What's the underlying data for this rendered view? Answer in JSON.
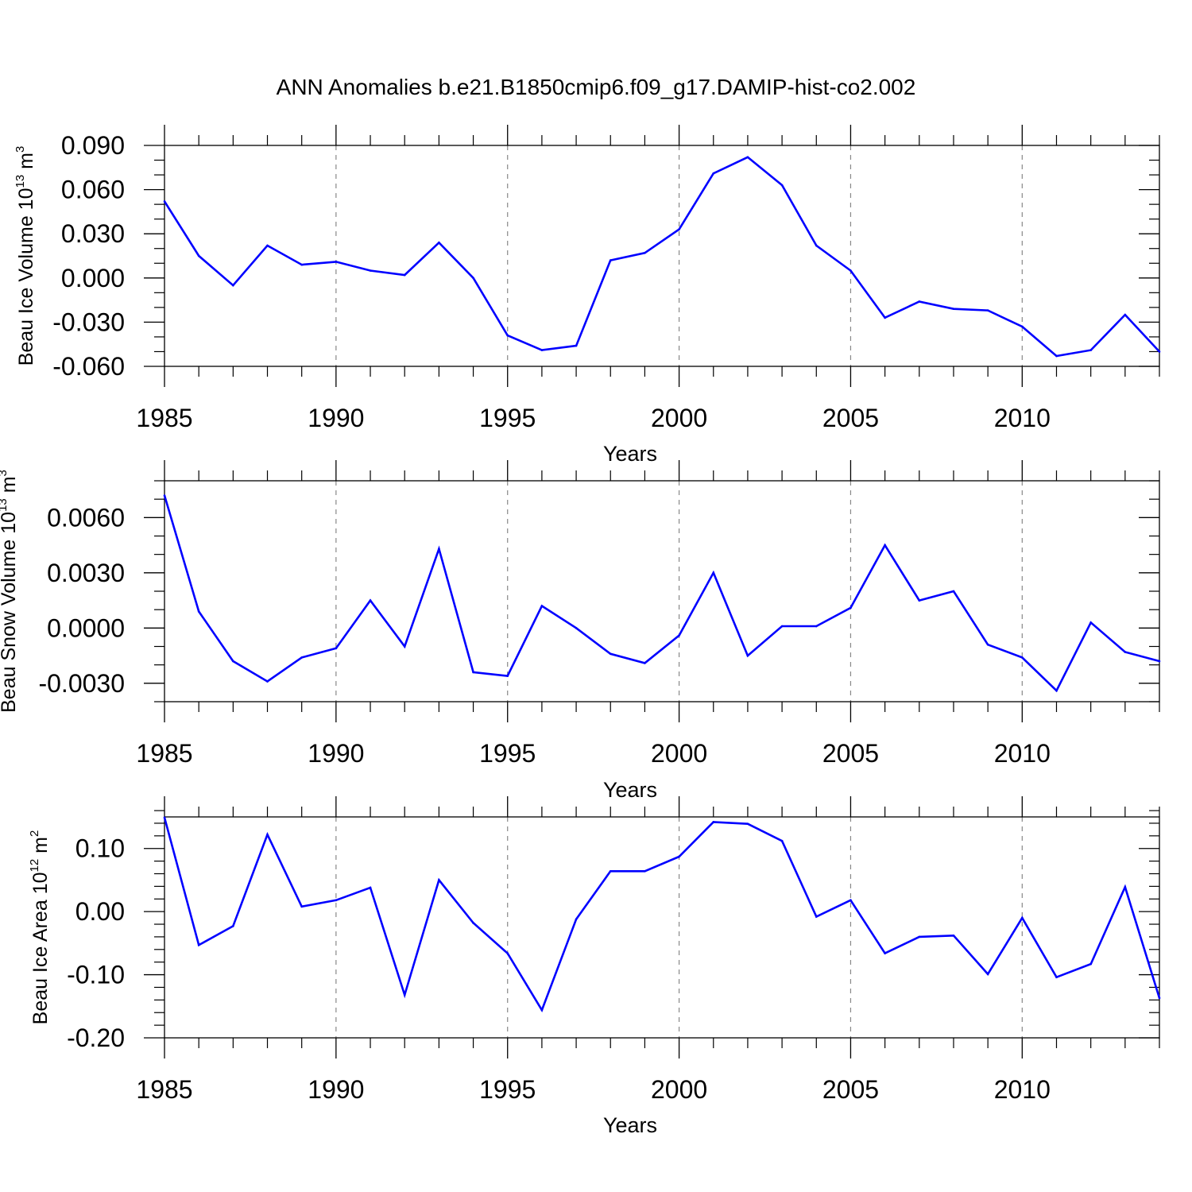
{
  "title": "ANN Anomalies b.e21.B1850cmip6.f09_g17.DAMIP-hist-co2.002",
  "colors": {
    "line": "#0000ff",
    "axis": "#000000",
    "grid": "#888888",
    "background": "#ffffff"
  },
  "chart_data": [
    {
      "type": "line",
      "ylabel": {
        "main": "Beau Ice Volume 10",
        "exponent": "13",
        "unit": " m",
        "unit_exponent": "3"
      },
      "xlabel": "Years",
      "xlim": [
        1985,
        2014
      ],
      "ylim": [
        -0.06,
        0.09
      ],
      "ytick_values": [
        -0.06,
        -0.03,
        0.0,
        0.03,
        0.06,
        0.09
      ],
      "ytick_labels": [
        "-0.060",
        "-0.030",
        "0.000",
        "0.030",
        "0.060",
        "0.090"
      ],
      "yminor_step": 0.01,
      "xtick_values": [
        1985,
        1990,
        1995,
        2000,
        2005,
        2010
      ],
      "xtick_labels": [
        "1985",
        "1990",
        "1995",
        "2000",
        "2005",
        "2010"
      ],
      "grid": "vertical-dashed",
      "series": [
        {
          "name": "Beau Ice Volume",
          "x": [
            1985,
            1986,
            1987,
            1988,
            1989,
            1990,
            1991,
            1992,
            1993,
            1994,
            1995,
            1996,
            1997,
            1998,
            1999,
            2000,
            2001,
            2002,
            2003,
            2004,
            2005,
            2006,
            2007,
            2008,
            2009,
            2010,
            2011,
            2012,
            2013,
            2014
          ],
          "values": [
            0.052,
            0.015,
            -0.005,
            0.022,
            0.009,
            0.011,
            0.005,
            0.002,
            0.024,
            0.0,
            -0.039,
            -0.049,
            -0.046,
            0.012,
            0.017,
            0.033,
            0.071,
            0.082,
            0.063,
            0.022,
            0.005,
            -0.027,
            -0.016,
            -0.021,
            -0.022,
            -0.033,
            -0.053,
            -0.049,
            -0.025,
            -0.05
          ]
        }
      ]
    },
    {
      "type": "line",
      "ylabel": {
        "main": "Beau Snow Volume 10",
        "exponent": "13",
        "unit": " m",
        "unit_exponent": "3"
      },
      "xlabel": "Years",
      "xlim": [
        1985,
        2014
      ],
      "ylim": [
        -0.004,
        0.008
      ],
      "ytick_values": [
        -0.003,
        0.0,
        0.003,
        0.006
      ],
      "ytick_labels": [
        "-0.0030",
        "0.0000",
        "0.0030",
        "0.0060"
      ],
      "yminor_step": 0.001,
      "xtick_values": [
        1985,
        1990,
        1995,
        2000,
        2005,
        2010
      ],
      "xtick_labels": [
        "1985",
        "1990",
        "1995",
        "2000",
        "2005",
        "2010"
      ],
      "grid": "vertical-dashed",
      "series": [
        {
          "name": "Beau Snow Volume",
          "x": [
            1985,
            1986,
            1987,
            1988,
            1989,
            1990,
            1991,
            1992,
            1993,
            1994,
            1995,
            1996,
            1997,
            1998,
            1999,
            2000,
            2001,
            2002,
            2003,
            2004,
            2005,
            2006,
            2007,
            2008,
            2009,
            2010,
            2011,
            2012,
            2013,
            2014
          ],
          "values": [
            0.0072,
            0.0009,
            -0.0018,
            -0.0029,
            -0.0016,
            -0.0011,
            0.0015,
            -0.001,
            0.0043,
            -0.0024,
            -0.0026,
            0.0012,
            0.0,
            -0.0014,
            -0.0019,
            -0.0004,
            0.003,
            -0.0015,
            0.0001,
            0.0001,
            0.0011,
            0.0045,
            0.0015,
            0.002,
            -0.0009,
            -0.0016,
            -0.0034,
            0.0003,
            -0.0013,
            -0.0018
          ]
        }
      ]
    },
    {
      "type": "line",
      "ylabel": {
        "main": "Beau Ice Area 10",
        "exponent": "12",
        "unit": " m",
        "unit_exponent": "2"
      },
      "xlabel": "Years",
      "xlim": [
        1985,
        2014
      ],
      "ylim": [
        -0.2,
        0.15
      ],
      "ytick_values": [
        -0.2,
        -0.1,
        0.0,
        0.1
      ],
      "ytick_labels": [
        "-0.20",
        "-0.10",
        "0.00",
        "0.10"
      ],
      "yminor_step": 0.02,
      "xtick_values": [
        1985,
        1990,
        1995,
        2000,
        2005,
        2010
      ],
      "xtick_labels": [
        "1985",
        "1990",
        "1995",
        "2000",
        "2005",
        "2010"
      ],
      "grid": "vertical-dashed",
      "series": [
        {
          "name": "Beau Ice Area",
          "x": [
            1985,
            1986,
            1987,
            1988,
            1989,
            1990,
            1991,
            1992,
            1993,
            1994,
            1995,
            1996,
            1997,
            1998,
            1999,
            2000,
            2001,
            2002,
            2003,
            2004,
            2005,
            2006,
            2007,
            2008,
            2009,
            2010,
            2011,
            2012,
            2013,
            2014
          ],
          "values": [
            0.149,
            -0.053,
            -0.023,
            0.122,
            0.008,
            0.018,
            0.038,
            -0.132,
            0.05,
            -0.018,
            -0.066,
            -0.156,
            -0.012,
            0.064,
            0.064,
            0.087,
            0.142,
            0.139,
            0.112,
            -0.008,
            0.018,
            -0.066,
            -0.04,
            -0.038,
            -0.099,
            -0.01,
            -0.104,
            -0.083,
            0.039,
            -0.137
          ]
        }
      ]
    }
  ]
}
